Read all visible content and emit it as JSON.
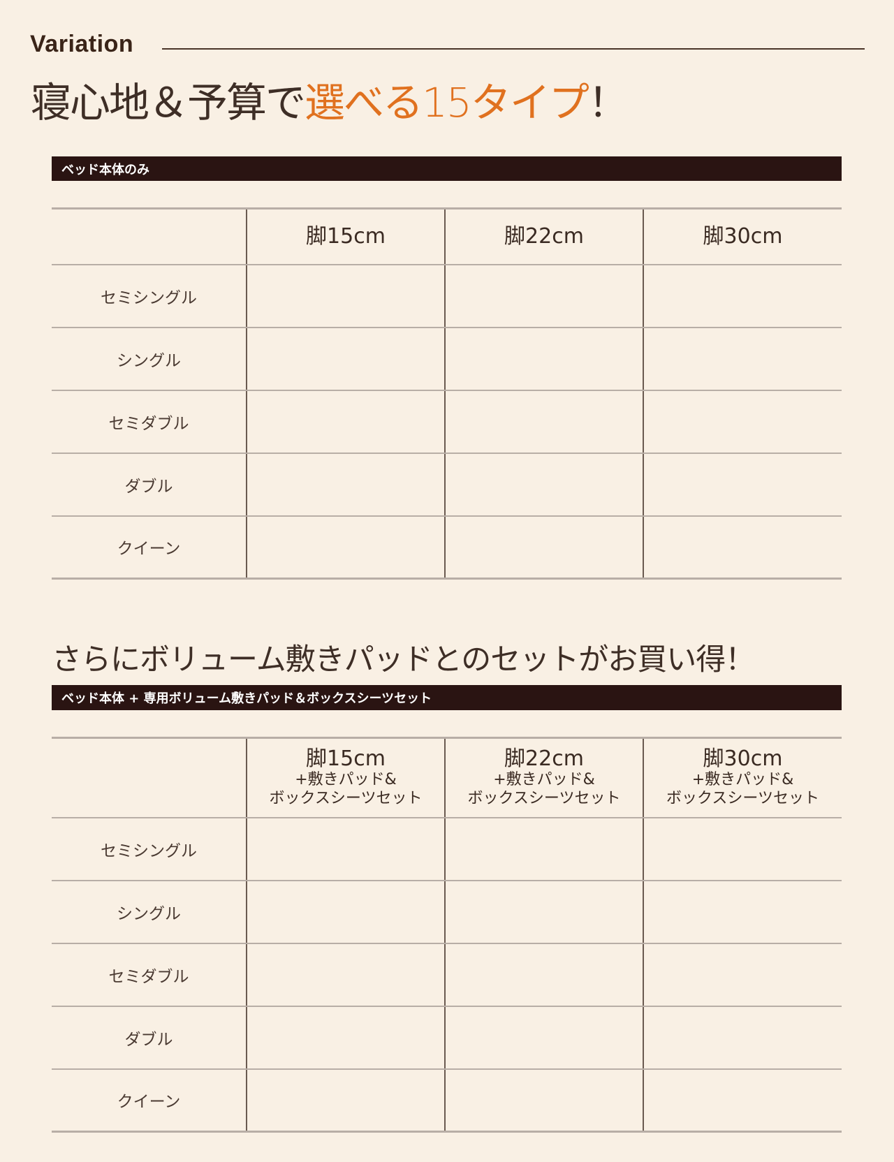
{
  "header": {
    "label": "Variation",
    "title_plain": "寝心地＆予算で",
    "title_accent": "選べる15タイプ",
    "title_end": "！",
    "accent_color": "#e0711f"
  },
  "section1": {
    "bar_label": "ベッド本体のみ",
    "columns": [
      {
        "main": "脚15cm"
      },
      {
        "main": "脚22cm"
      },
      {
        "main": "脚30cm"
      }
    ],
    "rows": [
      "セミシングル",
      "シングル",
      "セミダブル",
      "ダブル",
      "クイーン"
    ]
  },
  "subtitle": "さらにボリューム敷きパッドとのセットがお買い得！",
  "section2": {
    "bar_label": "ベッド本体 + 専用ボリューム敷きパッド＆ボックスシーツセット",
    "columns": [
      {
        "main": "脚15cm",
        "sub1": "+敷きパッド&",
        "sub2": "ボックスシーツセット"
      },
      {
        "main": "脚22cm",
        "sub1": "+敷きパッド&",
        "sub2": "ボックスシーツセット"
      },
      {
        "main": "脚30cm",
        "sub1": "+敷きパッド&",
        "sub2": "ボックスシーツセット"
      }
    ],
    "rows": [
      "セミシングル",
      "シングル",
      "セミダブル",
      "ダブル",
      "クイーン"
    ]
  }
}
